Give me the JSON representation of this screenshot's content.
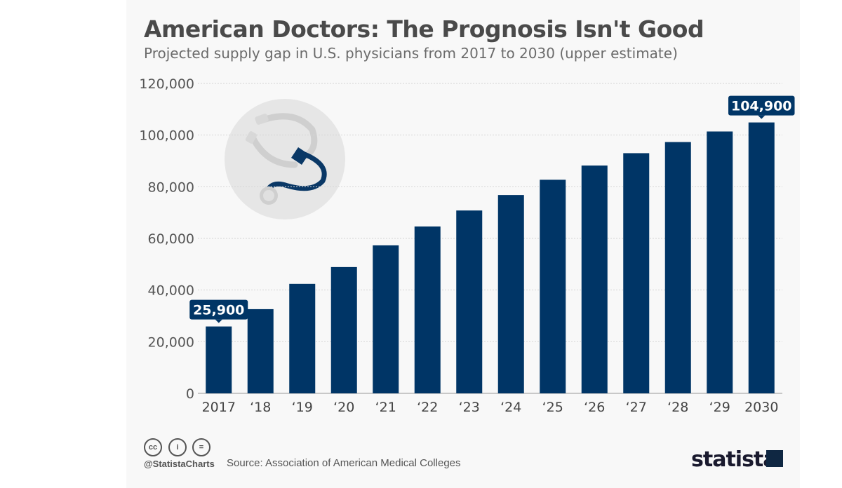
{
  "chart_data": {
    "type": "bar",
    "title": "American Doctors: The Prognosis Isn't Good",
    "subtitle": "Projected supply gap in U.S. physicians from 2017 to 2030 (upper estimate)",
    "categories": [
      "2017",
      "‘18",
      "‘19",
      "‘20",
      "‘21",
      "‘22",
      "‘23",
      "‘24",
      "‘25",
      "‘26",
      "‘27",
      "‘28",
      "‘29",
      "2030"
    ],
    "values": [
      25900,
      32600,
      42400,
      48900,
      57300,
      64600,
      70800,
      76800,
      82700,
      88200,
      93000,
      97300,
      101400,
      104900
    ],
    "data_labels": {
      "0": "25,900",
      "13": "104,900"
    },
    "ylim": [
      0,
      120000
    ],
    "yticks": [
      0,
      20000,
      40000,
      60000,
      80000,
      100000,
      120000
    ],
    "ytick_labels": [
      "0",
      "20,000",
      "40,000",
      "60,000",
      "80,000",
      "100,000",
      "120,000"
    ],
    "grid": true,
    "bar_color": "#003566"
  },
  "footer": {
    "handle": "@StatistaCharts",
    "source": "Source: Association of American Medical Colleges",
    "logo": "statista",
    "license_icons": [
      "cc",
      "by",
      "nd"
    ]
  },
  "illustration": "stethoscope-icon"
}
